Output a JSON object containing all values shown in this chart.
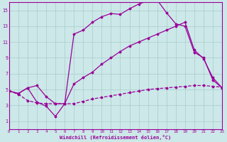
{
  "background_color": "#cce8e8",
  "grid_color": "#aacccc",
  "line_color": "#990099",
  "xlabel": "Windchill (Refroidissement éolien,°C)",
  "xlim": [
    0,
    23
  ],
  "ylim": [
    0,
    16
  ],
  "xticks": [
    0,
    1,
    2,
    3,
    4,
    5,
    6,
    7,
    8,
    9,
    10,
    11,
    12,
    13,
    14,
    15,
    16,
    17,
    18,
    19,
    20,
    21,
    22,
    23
  ],
  "yticks": [
    1,
    3,
    5,
    7,
    9,
    11,
    13,
    15
  ],
  "series": [
    {
      "x": [
        0,
        1,
        2,
        3,
        4,
        5,
        6,
        7,
        8,
        9,
        10,
        11,
        12,
        13,
        14,
        15,
        16,
        17,
        18,
        19,
        20,
        21,
        22,
        23
      ],
      "y": [
        4.8,
        4.4,
        3.6,
        3.3,
        3.2,
        3.2,
        3.2,
        3.2,
        3.5,
        3.8,
        4.0,
        4.2,
        4.4,
        4.6,
        4.8,
        5.0,
        5.1,
        5.2,
        5.3,
        5.4,
        5.5,
        5.5,
        5.4,
        5.3
      ],
      "linestyle": "--",
      "marker": "D",
      "markersize": 1.5,
      "linewidth": 0.9
    },
    {
      "x": [
        0,
        1,
        2,
        3,
        4,
        5,
        6,
        7,
        8,
        9,
        10,
        11,
        12,
        13,
        14,
        15,
        16,
        17,
        18,
        19,
        20,
        21,
        22,
        23
      ],
      "y": [
        4.8,
        4.5,
        5.2,
        3.4,
        2.9,
        1.6,
        3.2,
        12.0,
        12.5,
        13.5,
        14.2,
        14.6,
        14.5,
        15.2,
        15.8,
        16.2,
        16.3,
        14.7,
        13.3,
        13.0,
        9.7,
        9.0,
        6.2,
        5.2
      ],
      "linestyle": "-",
      "marker": "D",
      "markersize": 1.5,
      "linewidth": 0.9
    },
    {
      "x": [
        0,
        1,
        2,
        3,
        4,
        5,
        6,
        7,
        8,
        9,
        10,
        11,
        12,
        13,
        14,
        15,
        16,
        17,
        18,
        19,
        20,
        21,
        22,
        23
      ],
      "y": [
        4.8,
        4.5,
        5.2,
        5.5,
        4.1,
        3.2,
        3.2,
        5.7,
        6.5,
        7.2,
        8.2,
        9.0,
        9.8,
        10.5,
        11.0,
        11.5,
        12.0,
        12.5,
        13.0,
        13.5,
        10.0,
        8.9,
        6.5,
        5.2
      ],
      "linestyle": "-",
      "marker": "D",
      "markersize": 1.5,
      "linewidth": 0.9
    }
  ]
}
